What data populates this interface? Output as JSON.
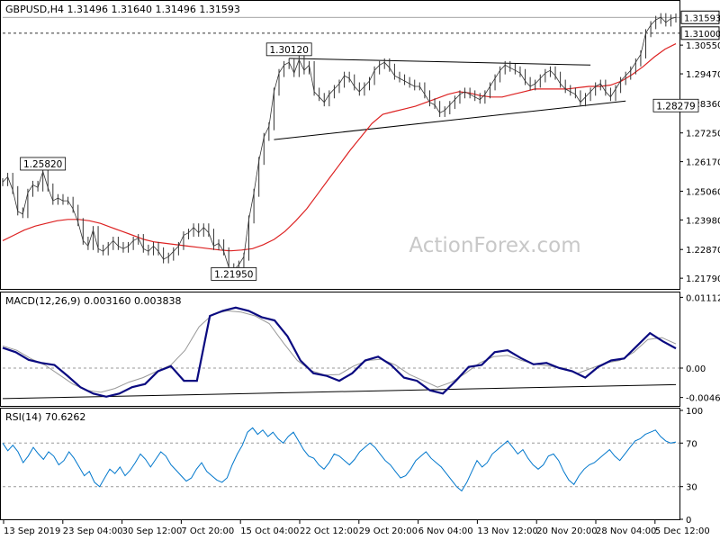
{
  "chart_data": {
    "type": "line",
    "symbol": "GBPUSD",
    "timeframe": "H4",
    "header": "GBPUSD,H4  1.31496 1.31640 1.31496 1.31593",
    "ohlc": {
      "open": 1.31496,
      "high": 1.3164,
      "low": 1.31496,
      "close": 1.31593
    },
    "watermark": "ActionForex.com",
    "colors": {
      "price": "#333333",
      "ma": "#dd2222",
      "macd": "#0a0a80",
      "signal": "#999999",
      "rsi": "#0077cc",
      "trend": "#000000"
    },
    "x_labels": [
      "13 Sep 2019",
      "23 Sep 04:00",
      "30 Sep 12:00",
      "7 Oct 20:00",
      "15 Oct 04:00",
      "22 Oct 12:00",
      "29 Oct 20:00",
      "6 Nov 04:00",
      "13 Nov 12:00",
      "20 Nov 20:00",
      "28 Nov 04:00",
      "5 Dec 12:00"
    ],
    "price_panel": {
      "ylim": [
        1.2149,
        1.3211
      ],
      "ticks": [
        "1.31000",
        "1.30550",
        "1.29470",
        "1.28360",
        "1.27250",
        "1.26170",
        "1.25060",
        "1.23980",
        "1.22870",
        "1.21790"
      ],
      "current_price": "1.31593",
      "level_line": "1.31000",
      "annotations": [
        {
          "label": "1.30120",
          "bar": 57,
          "price": 1.3012
        },
        {
          "label": "1.25820",
          "bar": 8,
          "price": 1.2582
        },
        {
          "label": "1.21950",
          "bar": 46,
          "price": 1.2195
        },
        {
          "label": "1.28279",
          "bar": 134,
          "price": 1.28279
        }
      ],
      "price_series": [
        1.254,
        1.256,
        1.251,
        1.243,
        1.242,
        1.25,
        1.253,
        1.252,
        1.258,
        1.252,
        1.247,
        1.248,
        1.247,
        1.247,
        1.244,
        1.239,
        1.232,
        1.23,
        1.236,
        1.229,
        1.228,
        1.23,
        1.232,
        1.23,
        1.229,
        1.23,
        1.232,
        1.233,
        1.229,
        1.228,
        1.23,
        1.228,
        1.225,
        1.226,
        1.228,
        1.23,
        1.234,
        1.235,
        1.237,
        1.235,
        1.237,
        1.235,
        1.23,
        1.231,
        1.228,
        1.222,
        1.221,
        1.223,
        1.226,
        1.24,
        1.25,
        1.262,
        1.271,
        1.275,
        1.288,
        1.295,
        1.298,
        1.299,
        1.295,
        1.3,
        1.296,
        1.298,
        1.288,
        1.286,
        1.284,
        1.287,
        1.289,
        1.291,
        1.294,
        1.293,
        1.29,
        1.288,
        1.29,
        1.292,
        1.296,
        1.298,
        1.299,
        1.297,
        1.294,
        1.293,
        1.292,
        1.291,
        1.29,
        1.29,
        1.287,
        1.284,
        1.283,
        1.28,
        1.281,
        1.283,
        1.285,
        1.287,
        1.288,
        1.287,
        1.286,
        1.285,
        1.287,
        1.29,
        1.293,
        1.296,
        1.298,
        1.297,
        1.296,
        1.295,
        1.292,
        1.29,
        1.291,
        1.293,
        1.295,
        1.296,
        1.294,
        1.291,
        1.289,
        1.288,
        1.287,
        1.284,
        1.286,
        1.288,
        1.29,
        1.291,
        1.288,
        1.286,
        1.289,
        1.292,
        1.294,
        1.296,
        1.299,
        1.302,
        1.31,
        1.313,
        1.315,
        1.316,
        1.314,
        1.3155,
        1.3159
      ],
      "ma_series": [
        1.232,
        1.234,
        1.236,
        1.2375,
        1.2385,
        1.2395,
        1.24,
        1.24,
        1.2395,
        1.2385,
        1.237,
        1.2355,
        1.234,
        1.2325,
        1.2315,
        1.231,
        1.2305,
        1.23,
        1.2295,
        1.229,
        1.2285,
        1.2282,
        1.2285,
        1.229,
        1.2305,
        1.2325,
        1.2355,
        1.2395,
        1.244,
        1.2495,
        1.255,
        1.2605,
        1.266,
        1.271,
        1.276,
        1.2795,
        1.2805,
        1.2815,
        1.2825,
        1.284,
        1.2855,
        1.287,
        1.288,
        1.2875,
        1.2865,
        1.286,
        1.286,
        1.287,
        1.288,
        1.289,
        1.289,
        1.289,
        1.289,
        1.2895,
        1.29,
        1.29,
        1.2905,
        1.292,
        1.2945,
        1.2975,
        1.301,
        1.304,
        1.306
      ]
    },
    "macd_panel": {
      "label": "MACD(12,26,9) 0.003160 0.003838",
      "macd": 0.00316,
      "signal": 0.003838,
      "ylim": [
        -0.0058,
        0.0116
      ],
      "ticks": [
        "0.011123",
        "0.00",
        "-0.004617"
      ],
      "macd_series": [
        0.0032,
        0.0025,
        0.0013,
        0.0008,
        0.0005,
        -0.0012,
        -0.003,
        -0.004,
        -0.0045,
        -0.004,
        -0.003,
        -0.0025,
        -0.0005,
        0.0003,
        -0.002,
        -0.002,
        0.0082,
        0.009,
        0.0095,
        0.009,
        0.008,
        0.0075,
        0.005,
        0.0012,
        -0.0008,
        -0.0012,
        -0.002,
        -0.0008,
        0.0012,
        0.0018,
        0.0005,
        -0.0015,
        -0.002,
        -0.0035,
        -0.004,
        -0.002,
        0.0002,
        0.0005,
        0.0025,
        0.0028,
        0.0016,
        0.0006,
        0.0008,
        0.0,
        -0.0005,
        -0.0015,
        0.0002,
        0.0012,
        0.0015,
        0.0035,
        0.0055,
        0.0042,
        0.0031
      ],
      "signal_series": [
        0.0035,
        0.0028,
        0.0015,
        0.0005,
        -0.001,
        -0.0025,
        -0.0035,
        -0.0038,
        -0.0032,
        -0.0022,
        -0.0015,
        -0.0005,
        0.0005,
        0.0028,
        0.0065,
        0.0085,
        0.009,
        0.0088,
        0.0082,
        0.007,
        0.004,
        0.0012,
        -0.0004,
        -0.0011,
        -0.001,
        0.0003,
        0.0012,
        0.0014,
        0.0005,
        -0.001,
        -0.002,
        -0.003,
        -0.0022,
        -0.0008,
        0.0008,
        0.0018,
        0.002,
        0.0012,
        0.0006,
        0.0003,
        0.0,
        -0.0008,
        0.0,
        0.0008,
        0.0012,
        0.0025,
        0.0045,
        0.0048,
        0.0038
      ]
    },
    "rsi_panel": {
      "label": "RSI(14) 70.6262",
      "value": 70.6262,
      "ylim": [
        0,
        100
      ],
      "ticks": [
        "100",
        "70",
        "30",
        "0"
      ],
      "levels": [
        70,
        30
      ],
      "rsi_series": [
        70,
        63,
        68,
        62,
        52,
        58,
        66,
        60,
        55,
        62,
        58,
        50,
        54,
        62,
        56,
        48,
        40,
        44,
        34,
        30,
        38,
        46,
        42,
        48,
        40,
        45,
        52,
        60,
        55,
        48,
        55,
        62,
        58,
        50,
        45,
        40,
        35,
        38,
        46,
        52,
        44,
        40,
        36,
        34,
        38,
        50,
        60,
        68,
        80,
        84,
        78,
        82,
        76,
        80,
        74,
        70,
        76,
        80,
        72,
        64,
        58,
        56,
        50,
        46,
        52,
        60,
        58,
        54,
        50,
        55,
        62,
        66,
        70,
        66,
        60,
        54,
        50,
        44,
        38,
        40,
        46,
        54,
        58,
        62,
        56,
        52,
        48,
        42,
        36,
        30,
        26,
        34,
        44,
        54,
        48,
        52,
        60,
        64,
        68,
        72,
        66,
        60,
        64,
        56,
        50,
        46,
        50,
        58,
        60,
        54,
        44,
        36,
        32,
        40,
        46,
        50,
        52,
        56,
        60,
        64,
        58,
        54,
        60,
        66,
        72,
        74,
        78,
        80,
        82,
        76,
        72,
        70,
        71
      ]
    }
  }
}
